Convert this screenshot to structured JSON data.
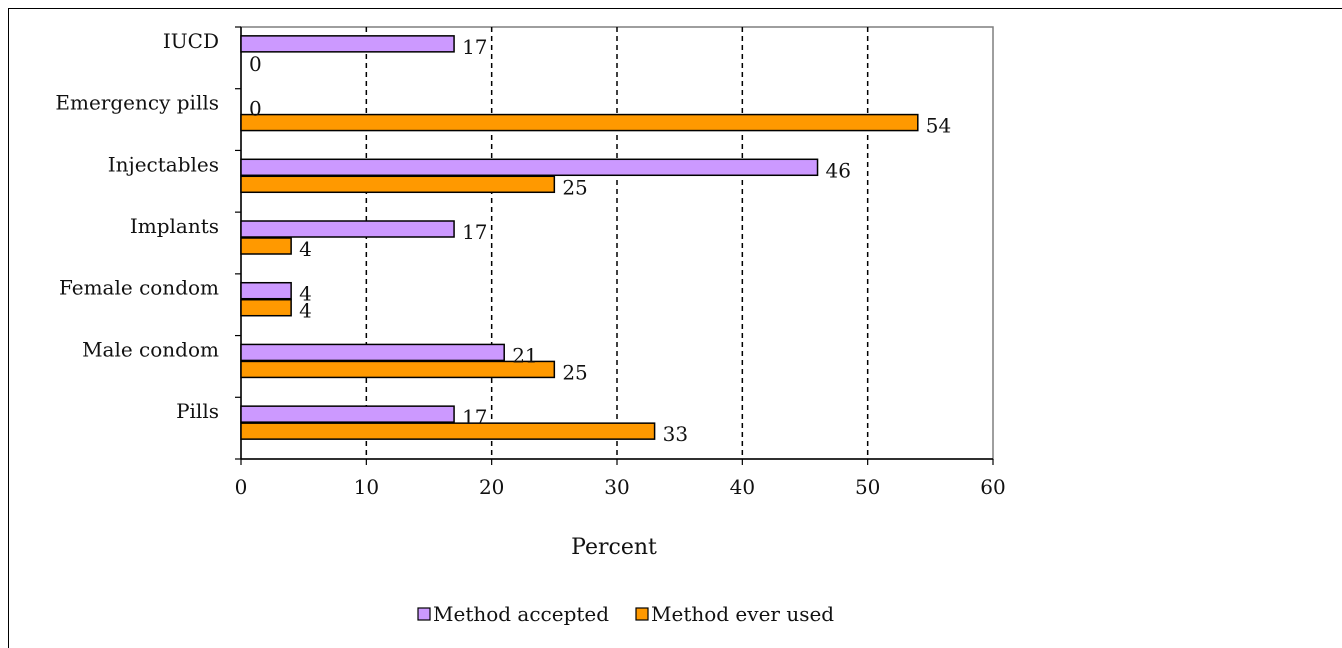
{
  "chart_data": {
    "type": "bar",
    "orientation": "horizontal",
    "categories": [
      "IUCD",
      "Emergency pills",
      "Injectables",
      "Implants",
      "Female condom",
      "Male condom",
      "Pills"
    ],
    "series": [
      {
        "name": "Method accepted",
        "values": [
          17,
          0,
          46,
          17,
          4,
          21,
          17
        ],
        "color": "#cc99ff"
      },
      {
        "name": "Method ever used",
        "values": [
          0,
          54,
          25,
          4,
          4,
          25,
          33
        ],
        "color": "#ff9900"
      }
    ],
    "title": "",
    "xlabel": "Percent",
    "ylabel": "",
    "xlim": [
      0,
      60
    ],
    "xticks": [
      0,
      10,
      20,
      30,
      40,
      50,
      60
    ],
    "grid": "vertical dashed",
    "legend": "bottom-center"
  }
}
